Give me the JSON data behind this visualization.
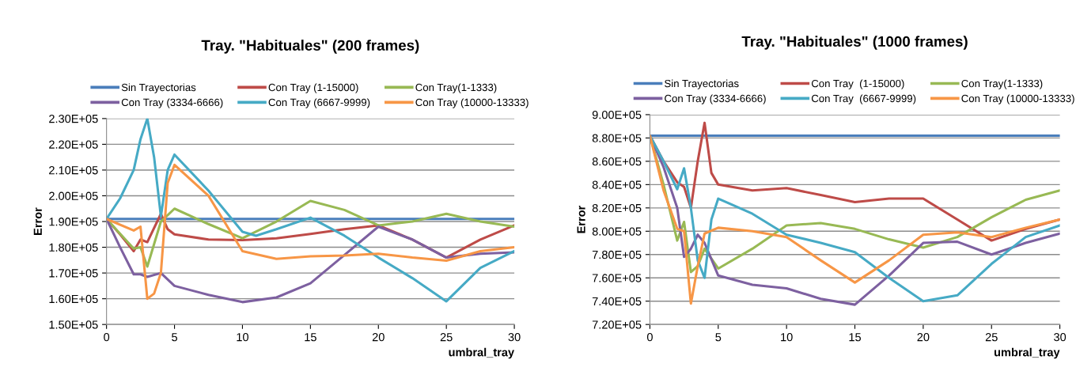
{
  "chart_data": [
    {
      "type": "line",
      "title": "Tray. \"Habituales\" (200 frames)",
      "xlabel": "umbral_tray",
      "ylabel": "Error",
      "legend": "top",
      "grid": "y",
      "marker": "none",
      "line_style": "solid",
      "xlim": [
        0,
        30
      ],
      "xticks": [
        0,
        5,
        10,
        15,
        20,
        25,
        30
      ],
      "ylim": [
        150000,
        230000
      ],
      "yticks": [
        {
          "value": 150000,
          "label": "1.50E+05"
        },
        {
          "value": 160000,
          "label": "1.60E+05"
        },
        {
          "value": 170000,
          "label": "1.70E+05"
        },
        {
          "value": 180000,
          "label": "1.80E+05"
        },
        {
          "value": 190000,
          "label": "1.90E+05"
        },
        {
          "value": 200000,
          "label": "2.00E+05"
        },
        {
          "value": 210000,
          "label": "2.10E+05"
        },
        {
          "value": 220000,
          "label": "2.20E+05"
        },
        {
          "value": 230000,
          "label": "2.30E+05"
        }
      ],
      "series": [
        {
          "name": "Sin Trayectorias",
          "color": "#4a7ebb",
          "x": [
            0,
            5,
            10,
            15,
            20,
            25,
            30
          ],
          "values": [
            191000,
            191000,
            191000,
            191000,
            191000,
            191000,
            191000
          ]
        },
        {
          "name": "Con Tray (1-15000)",
          "color": "#be4b48",
          "x": [
            0,
            1,
            2,
            2.5,
            3,
            4,
            4.5,
            5,
            7.5,
            10,
            12.5,
            15,
            17.5,
            20,
            22.5,
            25,
            27.5,
            30
          ],
          "values": [
            191000,
            185000,
            178500,
            183000,
            182000,
            193000,
            187000,
            185000,
            183000,
            182800,
            183500,
            185200,
            187000,
            188500,
            183000,
            176000,
            183000,
            188500
          ]
        },
        {
          "name": "Con Tray(1-1333)",
          "color": "#98b954",
          "x": [
            0,
            2,
            2.5,
            3,
            4,
            5,
            7.5,
            10,
            12.5,
            15,
            17.5,
            20,
            22.5,
            25,
            27.5,
            30
          ],
          "values": [
            191000,
            179500,
            180000,
            172500,
            190000,
            195000,
            189000,
            183500,
            190000,
            198000,
            194500,
            188500,
            190000,
            193000,
            190000,
            188000
          ]
        },
        {
          "name": "Con Tray (3334-6666)",
          "color": "#7d60a0",
          "x": [
            0,
            1,
            2,
            2.5,
            3,
            4,
            5,
            7.5,
            10,
            12.5,
            15,
            17.5,
            20,
            22.5,
            25,
            27.5,
            30
          ],
          "values": [
            191000,
            180000,
            169500,
            169500,
            168500,
            170000,
            165000,
            161500,
            158700,
            160500,
            166000,
            177000,
            188000,
            183000,
            176000,
            177500,
            178000
          ]
        },
        {
          "name": "Con Tray (6667-9999)",
          "color": "#46aac5",
          "x": [
            0,
            1,
            2,
            2.5,
            3,
            3.5,
            4,
            4.5,
            5,
            7.5,
            10,
            11,
            12.5,
            15,
            17.5,
            20,
            22.5,
            25,
            27.5,
            30
          ],
          "values": [
            191000,
            199000,
            210000,
            222000,
            230000,
            215000,
            192000,
            210000,
            216000,
            202000,
            186000,
            184500,
            187000,
            191500,
            184500,
            176000,
            168000,
            159000,
            172000,
            178500
          ]
        },
        {
          "name": "Con Tray (10000-13333)",
          "color": "#f79646",
          "x": [
            0,
            2,
            2.5,
            3,
            3.5,
            4,
            4.5,
            5,
            7.5,
            10,
            12.5,
            15,
            17.5,
            20,
            22.5,
            25,
            27.5,
            30
          ],
          "values": [
            191000,
            186500,
            188000,
            160000,
            162000,
            170000,
            205000,
            212000,
            200000,
            178500,
            175500,
            176500,
            176800,
            177500,
            176000,
            174800,
            178500,
            180000
          ]
        }
      ]
    },
    {
      "type": "line",
      "title": "Tray. \"Habituales\" (1000 frames)",
      "xlabel": "umbral_tray",
      "ylabel": "Error",
      "legend": "top",
      "grid": "y",
      "marker": "none",
      "line_style": "solid",
      "xlim": [
        0,
        30
      ],
      "xticks": [
        0,
        5,
        10,
        15,
        20,
        25,
        30
      ],
      "ylim": [
        720000,
        900000
      ],
      "yticks": [
        {
          "value": 720000,
          "label": "7.20E+05"
        },
        {
          "value": 740000,
          "label": "7.40E+05"
        },
        {
          "value": 760000,
          "label": "7.60E+05"
        },
        {
          "value": 780000,
          "label": "7.80E+05"
        },
        {
          "value": 800000,
          "label": "8.00E+05"
        },
        {
          "value": 820000,
          "label": "8.20E+05"
        },
        {
          "value": 840000,
          "label": "8.40E+05"
        },
        {
          "value": 860000,
          "label": "8.60E+05"
        },
        {
          "value": 880000,
          "label": "8.80E+05"
        },
        {
          "value": 900000,
          "label": "9.00E+05"
        }
      ],
      "series": [
        {
          "name": "Sin Trayectorias",
          "color": "#4a7ebb",
          "x": [
            0,
            5,
            10,
            15,
            20,
            25,
            30
          ],
          "values": [
            882000,
            882000,
            882000,
            882000,
            882000,
            882000,
            882000
          ]
        },
        {
          "name": "Con Tray  (1-15000)",
          "color": "#be4b48",
          "x": [
            0,
            1,
            2,
            2.5,
            3,
            3.5,
            4,
            4.5,
            5,
            7.5,
            10,
            12.5,
            15,
            17.5,
            20,
            22.5,
            25,
            27.5,
            30
          ],
          "values": [
            882000,
            860000,
            842000,
            838000,
            820000,
            860000,
            893000,
            850000,
            840000,
            835000,
            837000,
            831000,
            825000,
            828000,
            828000,
            810000,
            792000,
            802000,
            810000
          ]
        },
        {
          "name": "Con Tray(1-1333)",
          "color": "#98b954",
          "x": [
            0,
            1,
            2,
            2.5,
            3,
            3.5,
            4,
            5,
            7.5,
            10,
            12.5,
            15,
            17.5,
            20,
            22.5,
            25,
            27.5,
            30
          ],
          "values": [
            882000,
            840000,
            792000,
            808000,
            765000,
            770000,
            785000,
            768000,
            785000,
            805000,
            807000,
            802000,
            793000,
            786000,
            795000,
            812000,
            827000,
            835000
          ]
        },
        {
          "name": "Con Tray (3334-6666)",
          "color": "#7d60a0",
          "x": [
            0,
            1,
            2,
            2.5,
            3,
            3.5,
            4,
            5,
            7.5,
            10,
            12.5,
            15,
            17.5,
            20,
            22.5,
            25,
            27.5,
            30
          ],
          "values": [
            882000,
            855000,
            820000,
            778000,
            785000,
            797000,
            790000,
            762000,
            754000,
            751000,
            742000,
            737000,
            762000,
            790000,
            791000,
            780000,
            790000,
            798000
          ]
        },
        {
          "name": "Con Tray  (6667-9999)",
          "color": "#46aac5",
          "x": [
            0,
            1,
            2,
            2.5,
            3,
            3.5,
            4,
            4.5,
            5,
            7.5,
            10,
            12.5,
            15,
            17.5,
            20,
            22.5,
            25,
            27.5,
            30
          ],
          "values": [
            882000,
            860000,
            836000,
            854000,
            820000,
            775000,
            760000,
            810000,
            828000,
            815000,
            797000,
            790000,
            782000,
            760000,
            740000,
            745000,
            772000,
            795000,
            805000
          ]
        },
        {
          "name": "Con Tray (10000-13333)",
          "color": "#f79646",
          "x": [
            0,
            1,
            2,
            2.5,
            3,
            3.5,
            4,
            5,
            7.5,
            10,
            12.5,
            15,
            17.5,
            20,
            22.5,
            25,
            27.5,
            30
          ],
          "values": [
            882000,
            835000,
            802000,
            800000,
            738000,
            770000,
            798000,
            803000,
            800000,
            795000,
            775000,
            756000,
            775000,
            797000,
            799000,
            795000,
            803000,
            810000
          ]
        }
      ]
    }
  ]
}
